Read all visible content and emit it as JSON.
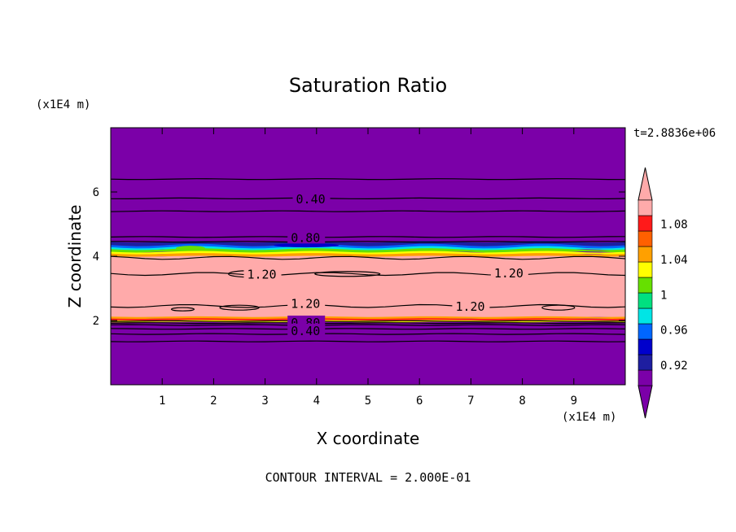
{
  "chart_data": {
    "type": "contour",
    "title": "Saturation Ratio",
    "xlabel": "X coordinate",
    "ylabel": "Z coordinate",
    "x_unit": "(x1E4 m)",
    "y_unit": "(x1E4 m)",
    "time_label": "t=2.8836e+06",
    "footer": "CONTOUR INTERVAL = 2.000E-01",
    "xlim": [
      0,
      10
    ],
    "ylim": [
      0,
      8
    ],
    "x_ticks": [
      "1",
      "2",
      "3",
      "4",
      "5",
      "6",
      "7",
      "8",
      "9"
    ],
    "y_ticks": [
      "2",
      "4",
      "6"
    ],
    "contour_labels": [
      "0.40",
      "0.80",
      "1.20",
      "1.20",
      "1.20",
      "1.20",
      "0.80",
      "0.40"
    ],
    "colorbar": {
      "tick_labels": [
        "1.08",
        "1.04",
        "1",
        "0.96",
        "0.92"
      ],
      "colors": [
        "#7B00A8",
        "#1E1EA0",
        "#0000CC",
        "#0066FF",
        "#00E5E5",
        "#00E080",
        "#66E000",
        "#FFFF00",
        "#FFA000",
        "#FF6000",
        "#FF1A1A",
        "#FFAAAA"
      ]
    },
    "colors": {
      "background_field": "#7B00A8",
      "core_field": "#FFAAAA"
    }
  }
}
